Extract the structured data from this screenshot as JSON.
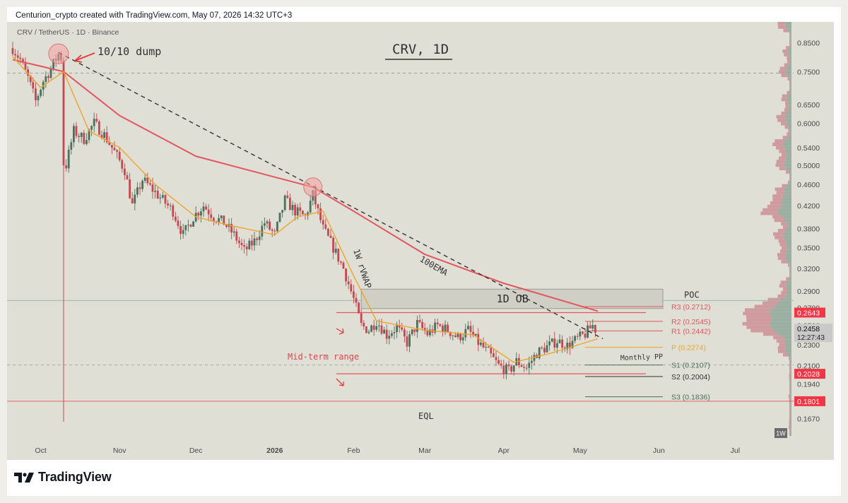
{
  "header": {
    "credit": "Centurion_crypto created with TradingView.com, May 07, 2026 14:32 UTC+3"
  },
  "footer": {
    "brand": "TradingView"
  },
  "colors": {
    "background": "#dfdfd5",
    "up_candle": "#4e6f5d",
    "down_candle": "#c44850",
    "ema": "#e5555f",
    "vwap": "#f0a32a",
    "volume_profile_up": "#8fa899",
    "volume_profile_down": "#cc8f94",
    "price_label_red": "#f23645",
    "current_price_label": "#c9c9c9"
  },
  "chart_data": {
    "type": "candlestick",
    "symbol": "CRV / TetherUS · 1D · Binance",
    "title": "CRV, 1D",
    "y_scale": "log",
    "ylim": [
      0.155,
      0.93
    ],
    "x_tick_labels": [
      "Oct",
      "Nov",
      "Dec",
      "2026",
      "Feb",
      "Mar",
      "Apr",
      "May",
      "Jun",
      "Jul"
    ],
    "y_tick_labels": [
      "0.8500",
      "0.7500",
      "0.6500",
      "0.6000",
      "0.5400",
      "0.5000",
      "0.4600",
      "0.4200",
      "0.3800",
      "0.3500",
      "0.3200",
      "0.2900",
      "0.2700",
      "0.2500",
      "0.2300",
      "0.2100",
      "0.1940",
      "0.1670"
    ],
    "close_path": [
      [
        "2025-09-20",
        0.83
      ],
      [
        "2025-09-23",
        0.79
      ],
      [
        "2025-09-26",
        0.73
      ],
      [
        "2025-09-29",
        0.66
      ],
      [
        "2025-10-02",
        0.72
      ],
      [
        "2025-10-05",
        0.76
      ],
      [
        "2025-10-08",
        0.81
      ],
      [
        "2025-10-10",
        0.78
      ],
      [
        "2025-10-11",
        0.5
      ],
      [
        "2025-10-14",
        0.58
      ],
      [
        "2025-10-18",
        0.56
      ],
      [
        "2025-10-22",
        0.6
      ],
      [
        "2025-10-26",
        0.57
      ],
      [
        "2025-10-30",
        0.53
      ],
      [
        "2025-11-03",
        0.49
      ],
      [
        "2025-11-06",
        0.42
      ],
      [
        "2025-11-10",
        0.47
      ],
      [
        "2025-11-14",
        0.45
      ],
      [
        "2025-11-18",
        0.43
      ],
      [
        "2025-11-22",
        0.41
      ],
      [
        "2025-11-26",
        0.37
      ],
      [
        "2025-11-30",
        0.4
      ],
      [
        "2025-12-04",
        0.42
      ],
      [
        "2025-12-08",
        0.4
      ],
      [
        "2025-12-12",
        0.39
      ],
      [
        "2025-12-16",
        0.37
      ],
      [
        "2025-12-20",
        0.345
      ],
      [
        "2025-12-24",
        0.36
      ],
      [
        "2025-12-28",
        0.39
      ],
      [
        "2026-01-01",
        0.37
      ],
      [
        "2026-01-05",
        0.43
      ],
      [
        "2026-01-09",
        0.41
      ],
      [
        "2026-01-13",
        0.4
      ],
      [
        "2026-01-16",
        0.44
      ],
      [
        "2026-01-20",
        0.38
      ],
      [
        "2026-01-24",
        0.35
      ],
      [
        "2026-01-28",
        0.32
      ],
      [
        "2026-02-01",
        0.28
      ],
      [
        "2026-02-04",
        0.25
      ],
      [
        "2026-02-07",
        0.245
      ],
      [
        "2026-02-10",
        0.255
      ],
      [
        "2026-02-14",
        0.24
      ],
      [
        "2026-02-18",
        0.248
      ],
      [
        "2026-02-22",
        0.232
      ],
      [
        "2026-02-26",
        0.252
      ],
      [
        "2026-03-02",
        0.241
      ],
      [
        "2026-03-06",
        0.25
      ],
      [
        "2026-03-10",
        0.245
      ],
      [
        "2026-03-14",
        0.237
      ],
      [
        "2026-03-18",
        0.245
      ],
      [
        "2026-03-22",
        0.232
      ],
      [
        "2026-03-26",
        0.222
      ],
      [
        "2026-03-30",
        0.21
      ],
      [
        "2026-04-03",
        0.205
      ],
      [
        "2026-04-06",
        0.214
      ],
      [
        "2026-04-10",
        0.208
      ],
      [
        "2026-04-14",
        0.222
      ],
      [
        "2026-04-18",
        0.228
      ],
      [
        "2026-04-22",
        0.234
      ],
      [
        "2026-04-26",
        0.229
      ],
      [
        "2026-04-30",
        0.236
      ],
      [
        "2026-05-03",
        0.241
      ],
      [
        "2026-05-06",
        0.25
      ],
      [
        "2026-05-07",
        0.2458
      ]
    ],
    "series": [
      {
        "name": "100EMA",
        "color": "#e5555f",
        "points": [
          [
            "2025-09-20",
            0.79
          ],
          [
            "2025-10-10",
            0.75
          ],
          [
            "2025-11-01",
            0.62
          ],
          [
            "2025-12-01",
            0.52
          ],
          [
            "2026-01-01",
            0.475
          ],
          [
            "2026-01-16",
            0.455
          ],
          [
            "2026-02-01",
            0.41
          ],
          [
            "2026-03-01",
            0.34
          ],
          [
            "2026-04-01",
            0.3
          ],
          [
            "2026-05-08",
            0.266
          ]
        ]
      },
      {
        "name": "1W rVWAP",
        "color": "#f0a32a",
        "points": [
          [
            "2025-09-20",
            0.8
          ],
          [
            "2025-10-01",
            0.7
          ],
          [
            "2025-10-10",
            0.75
          ],
          [
            "2025-10-20",
            0.58
          ],
          [
            "2025-11-01",
            0.54
          ],
          [
            "2025-11-15",
            0.46
          ],
          [
            "2025-12-01",
            0.4
          ],
          [
            "2025-12-15",
            0.385
          ],
          [
            "2026-01-01",
            0.37
          ],
          [
            "2026-01-10",
            0.4
          ],
          [
            "2026-01-20",
            0.41
          ],
          [
            "2026-02-01",
            0.31
          ],
          [
            "2026-02-10",
            0.255
          ],
          [
            "2026-03-01",
            0.245
          ],
          [
            "2026-03-20",
            0.24
          ],
          [
            "2026-04-05",
            0.213
          ],
          [
            "2026-04-20",
            0.222
          ],
          [
            "2026-05-08",
            0.236
          ]
        ]
      }
    ],
    "horizontal_levels": [
      {
        "label": "R3 (0.2712)",
        "value": 0.2712
      },
      {
        "label": "R2 (0.2545)",
        "value": 0.2545
      },
      {
        "label": "R1 (0.2442)",
        "value": 0.2442
      },
      {
        "label": "P (0.2274)",
        "value": 0.2274
      },
      {
        "label": "S1 (0.2107)",
        "value": 0.2107
      },
      {
        "label": "S2 (0.2004)",
        "value": 0.2004
      },
      {
        "label": "S3 (0.1836)",
        "value": 0.1836
      }
    ],
    "price_labels": [
      {
        "text": "0.2643",
        "value": 0.2643,
        "kind": "red"
      },
      {
        "text": "0.2458",
        "value": 0.2458,
        "kind": "current",
        "countdown": "12:27:43"
      },
      {
        "text": "0.2028",
        "value": 0.2028,
        "kind": "red"
      },
      {
        "text": "0.1801",
        "value": 0.1801,
        "kind": "red"
      }
    ],
    "order_block": {
      "label": "1D OB",
      "top": 0.2925,
      "bottom": 0.269
    },
    "poc": {
      "label": "POC",
      "value": 0.2785
    },
    "dashed_level": 0.745,
    "trendline": {
      "from": [
        "2025-10-08",
        0.815
      ],
      "to": [
        "2026-05-10",
        0.236
      ]
    },
    "annotations": [
      {
        "text": "10/10 dump"
      },
      {
        "text": "1W rVWAP"
      },
      {
        "text": "100EMA"
      },
      {
        "text": "Mid-term range"
      },
      {
        "text": "Monthly PP"
      },
      {
        "text": "EQL"
      }
    ],
    "interval_badge": "1W"
  }
}
